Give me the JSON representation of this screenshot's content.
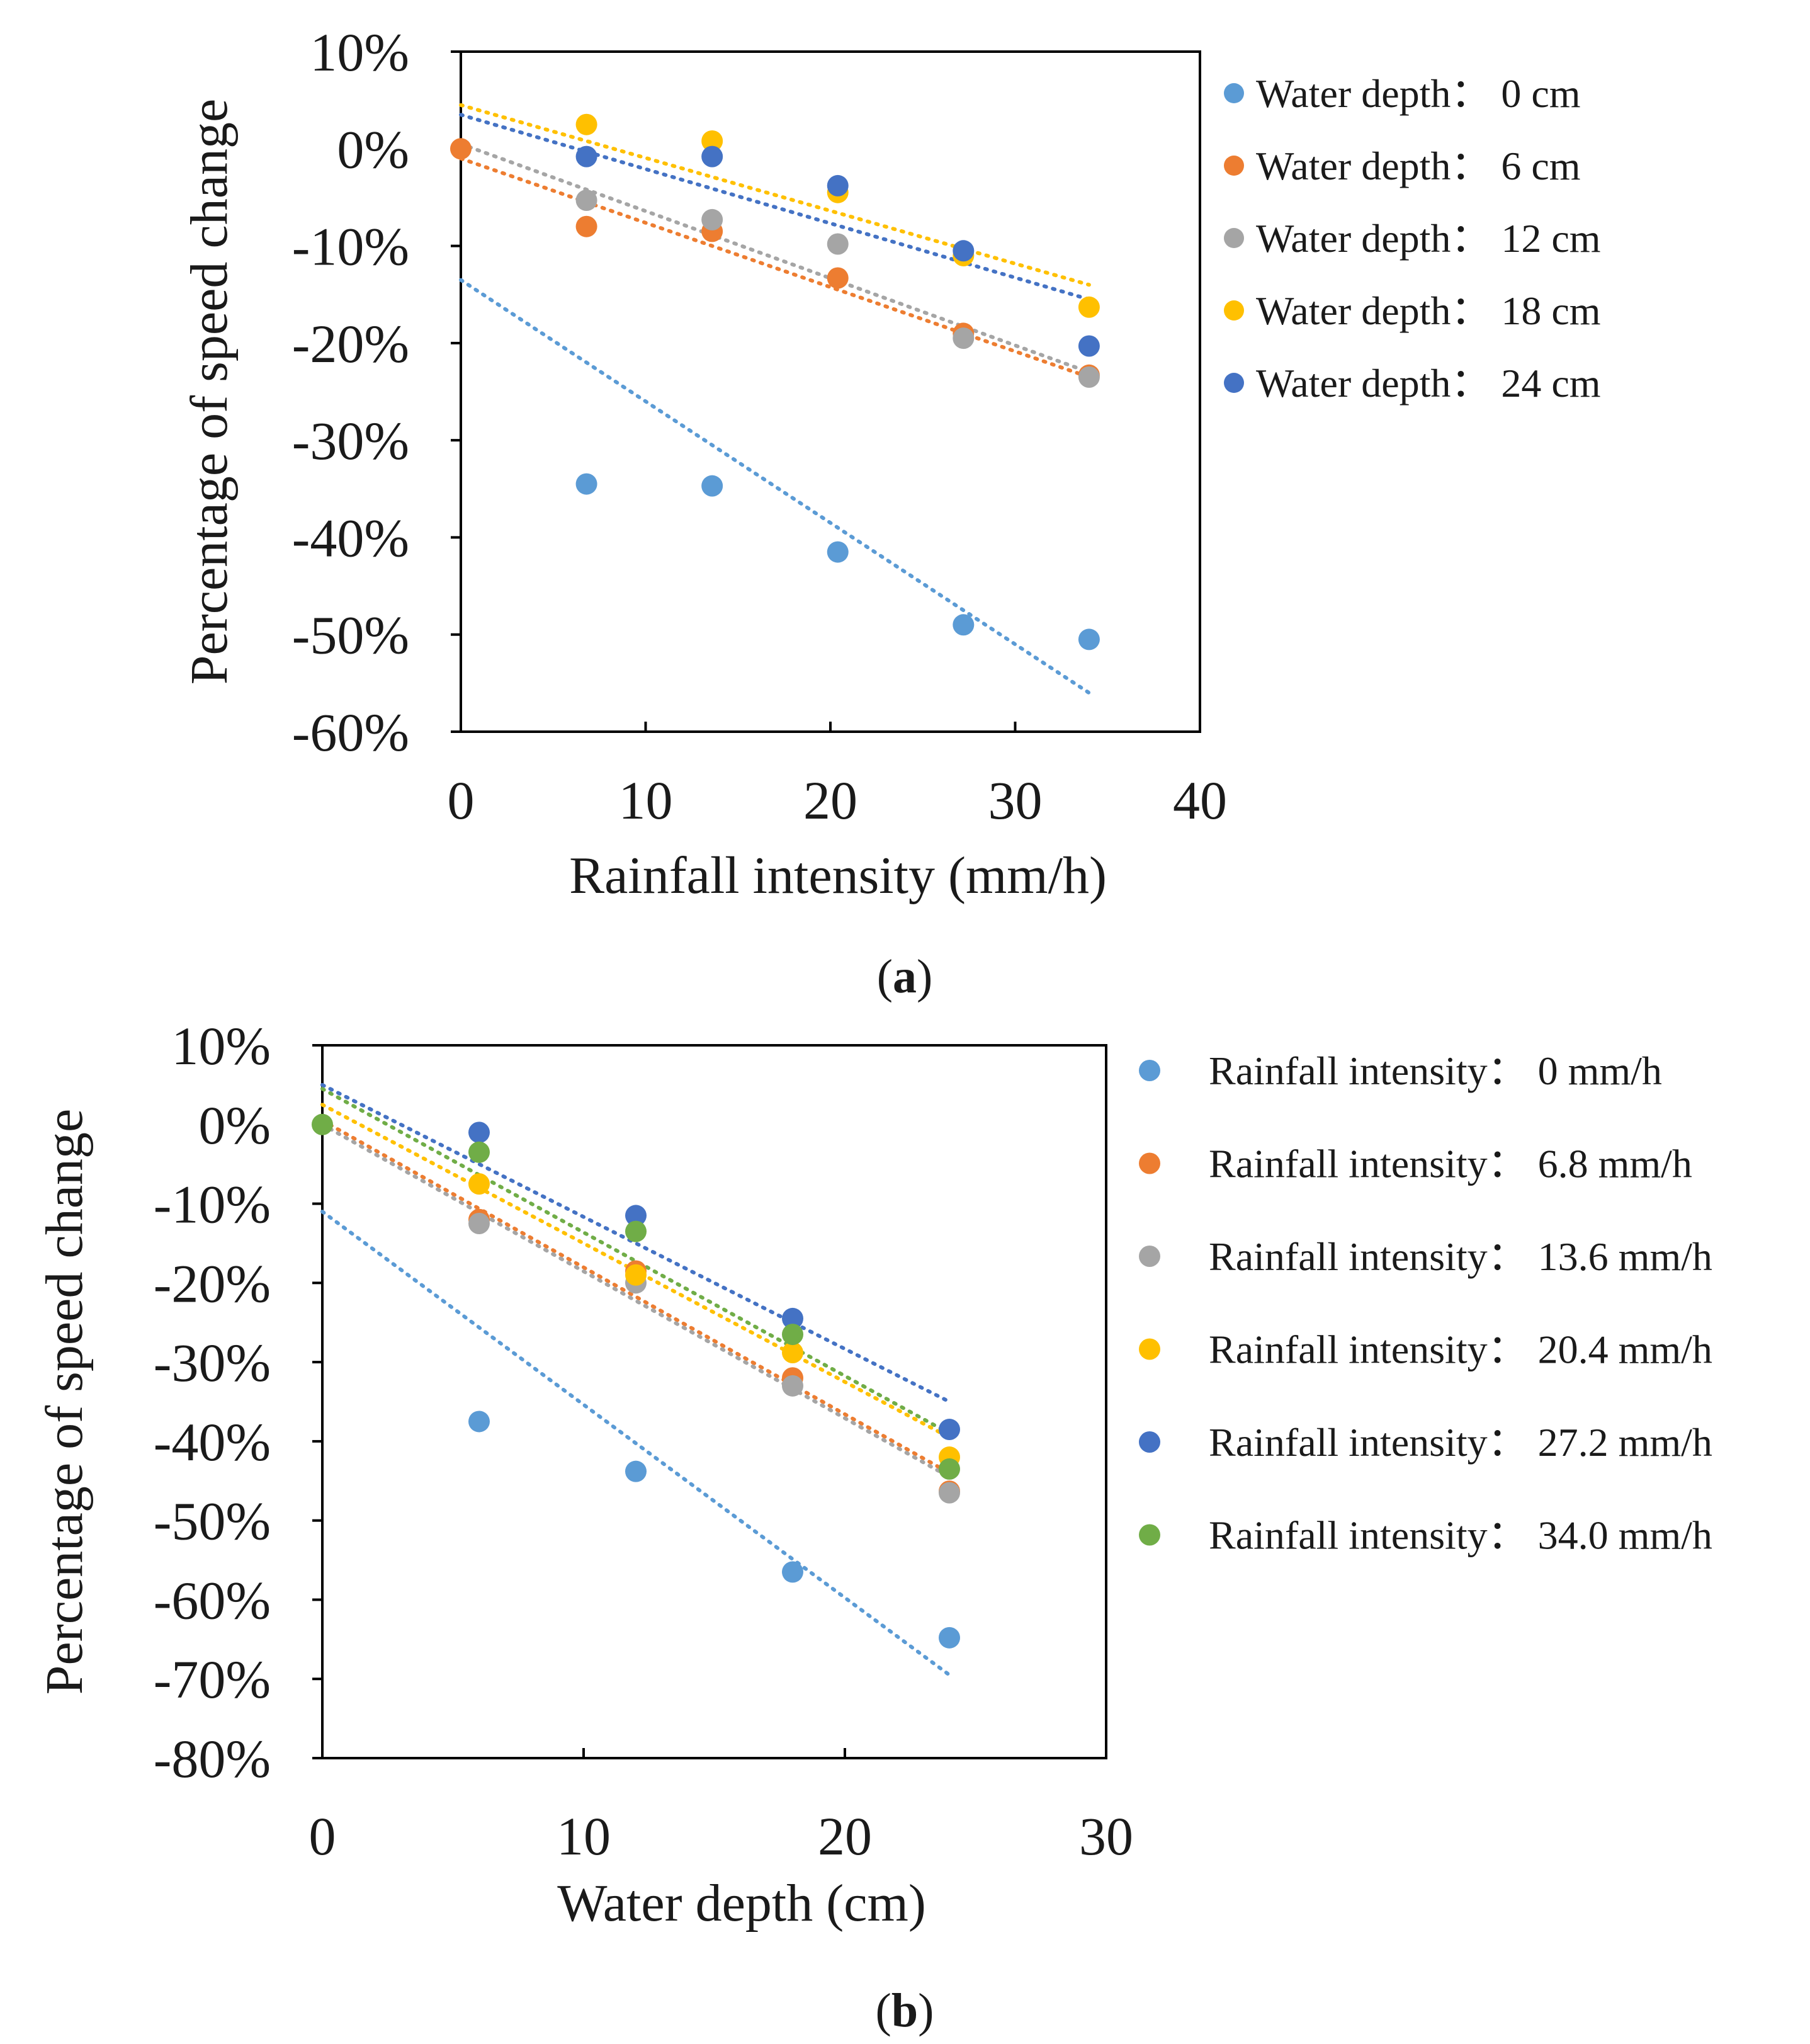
{
  "captions": [
    "a",
    "b"
  ],
  "chart_data": [
    {
      "id": "a",
      "type": "scatter",
      "xlabel": "Rainfall intensity (mm/h)",
      "ylabel": "Percentage of speed change",
      "xlim": [
        0,
        40
      ],
      "ylim": [
        -60,
        10
      ],
      "xticks": [
        0,
        10,
        20,
        30,
        40
      ],
      "yticks": [
        10,
        0,
        -10,
        -20,
        -30,
        -40,
        -50,
        -60
      ],
      "ytick_labels": [
        "10%",
        "0%",
        "-10%",
        "-20%",
        "-30%",
        "-40%",
        "-50%",
        "-60%"
      ],
      "x": [
        0,
        6.8,
        13.6,
        20.4,
        27.2,
        34.0
      ],
      "legend_position": "right",
      "series": [
        {
          "name": "Water depth：  0 cm",
          "color": "#5B9BD5",
          "values": [
            null,
            -34.5,
            -34.7,
            -41.5,
            -49.0,
            -50.5
          ],
          "trend": [
            -13.5,
            -56.0
          ]
        },
        {
          "name": "Water depth：  6 cm",
          "color": "#ED7D31",
          "values": [
            0,
            -8.0,
            -8.5,
            -13.3,
            -19.0,
            -23.3
          ],
          "trend": [
            -1.0,
            -23.5
          ]
        },
        {
          "name": "Water depth：  12 cm",
          "color": "#A5A5A5",
          "values": [
            null,
            -5.3,
            -7.3,
            -9.8,
            -19.5,
            -23.5
          ],
          "trend": [
            0.5,
            -23.0
          ]
        },
        {
          "name": "Water depth：  18 cm",
          "color": "#FFC000",
          "values": [
            null,
            2.5,
            0.8,
            -4.5,
            -11.0,
            -16.3
          ],
          "trend": [
            4.5,
            -14.0
          ]
        },
        {
          "name": "Water depth：  24 cm",
          "color": "#4472C4",
          "values": [
            null,
            -0.8,
            -0.8,
            -3.8,
            -10.5,
            -20.3
          ],
          "trend": [
            3.5,
            -15.5
          ]
        }
      ]
    },
    {
      "id": "b",
      "type": "scatter",
      "xlabel": "Water depth (cm)",
      "ylabel": "Percentage of speed change",
      "xlim": [
        0,
        30
      ],
      "ylim": [
        -80,
        10
      ],
      "xticks": [
        0,
        10,
        20,
        30
      ],
      "yticks": [
        10,
        0,
        -10,
        -20,
        -30,
        -40,
        -50,
        -60,
        -70,
        -80
      ],
      "ytick_labels": [
        "10%",
        "0%",
        "-10%",
        "-20%",
        "-30%",
        "-40%",
        "-50%",
        "-60%",
        "-70%",
        "-80%"
      ],
      "x": [
        0,
        6,
        12,
        18,
        24
      ],
      "legend_position": "right",
      "series": [
        {
          "name": "Rainfall intensity：  0 mm/h",
          "color": "#5B9BD5",
          "values": [
            null,
            -37.5,
            -43.8,
            -56.5,
            -64.8
          ],
          "trend": [
            -11.0,
            -69.5
          ]
        },
        {
          "name": "Rainfall intensity：  6.8 mm/h",
          "color": "#ED7D31",
          "values": [
            null,
            -12.0,
            -18.5,
            -32.0,
            -46.3
          ],
          "trend": [
            0.5,
            -44.0
          ]
        },
        {
          "name": "Rainfall intensity：  13.6 mm/h",
          "color": "#A5A5A5",
          "values": [
            null,
            -12.5,
            -20.0,
            -33.0,
            -46.5
          ],
          "trend": [
            0.0,
            -44.5
          ]
        },
        {
          "name": "Rainfall intensity：  20.4 mm/h",
          "color": "#FFC000",
          "values": [
            null,
            -7.5,
            -19.0,
            -28.8,
            -42.0
          ],
          "trend": [
            2.5,
            -39.5
          ]
        },
        {
          "name": "Rainfall intensity：  27.2 mm/h",
          "color": "#4472C4",
          "values": [
            null,
            -1.0,
            -11.5,
            -24.5,
            -38.5
          ],
          "trend": [
            5.0,
            -35.0
          ]
        },
        {
          "name": "Rainfall intensity：  34.0 mm/h",
          "color": "#70AD47",
          "values": [
            0,
            -3.5,
            -13.5,
            -26.5,
            -43.5
          ],
          "trend": [
            4.5,
            -39.0
          ]
        }
      ]
    }
  ]
}
